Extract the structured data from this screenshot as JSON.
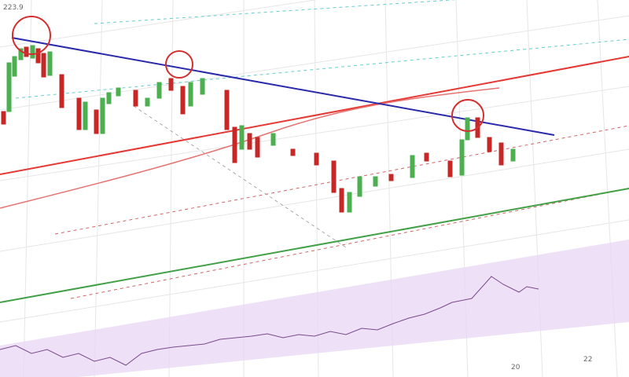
{
  "price_label": "223.9",
  "x_ticks": [
    "20",
    "22"
  ]
}
